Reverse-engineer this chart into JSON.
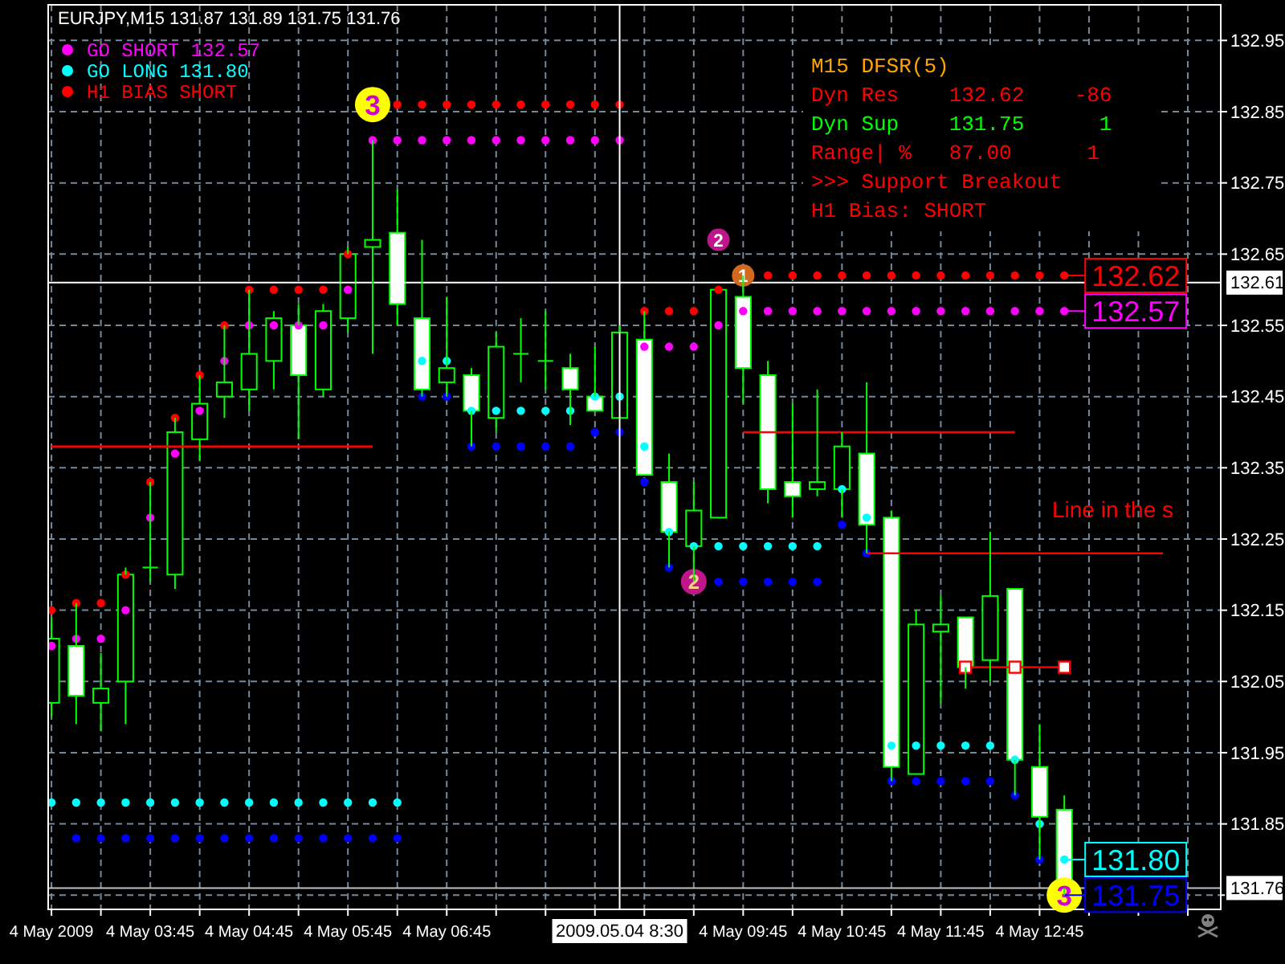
{
  "chart_data": {
    "type": "candlestick",
    "title": "EURJPY,M15  131.87 131.89 131.75 131.76",
    "color": "#00ff00",
    "x": [
      "2009-05-04T02:45",
      "2009-05-04T03:00",
      "2009-05-04T03:15",
      "2009-05-04T03:30",
      "2009-05-04T03:45",
      "2009-05-04T04:00",
      "2009-05-04T04:15",
      "2009-05-04T04:30",
      "2009-05-04T04:45",
      "2009-05-04T05:00",
      "2009-05-04T05:15",
      "2009-05-04T05:30",
      "2009-05-04T05:45",
      "2009-05-04T06:00",
      "2009-05-04T06:15",
      "2009-05-04T06:30",
      "2009-05-04T06:45",
      "2009-05-04T07:00",
      "2009-05-04T07:15",
      "2009-05-04T07:30",
      "2009-05-04T07:45",
      "2009-05-04T08:00",
      "2009-05-04T08:15",
      "2009-05-04T08:30",
      "2009-05-04T08:45",
      "2009-05-04T09:00",
      "2009-05-04T09:15",
      "2009-05-04T09:30",
      "2009-05-04T09:45",
      "2009-05-04T10:00",
      "2009-05-04T10:15",
      "2009-05-04T10:30",
      "2009-05-04T10:45",
      "2009-05-04T11:00",
      "2009-05-04T11:15",
      "2009-05-04T11:30",
      "2009-05-04T11:45",
      "2009-05-04T12:00",
      "2009-05-04T12:15",
      "2009-05-04T12:30",
      "2009-05-04T12:45",
      "2009-05-04T13:00"
    ],
    "ohlc": [
      [
        132.02,
        132.14,
        132.0,
        132.11
      ],
      [
        132.1,
        132.16,
        131.99,
        132.03
      ],
      [
        132.02,
        132.09,
        131.98,
        132.04
      ],
      [
        132.05,
        132.21,
        131.99,
        132.2
      ],
      [
        132.21,
        132.33,
        132.19,
        132.21
      ],
      [
        132.2,
        132.42,
        132.18,
        132.4
      ],
      [
        132.39,
        132.48,
        132.36,
        132.44
      ],
      [
        132.45,
        132.55,
        132.42,
        132.47
      ],
      [
        132.46,
        132.6,
        132.43,
        132.51
      ],
      [
        132.5,
        132.57,
        132.46,
        132.56
      ],
      [
        132.55,
        132.58,
        132.39,
        132.48
      ],
      [
        132.46,
        132.58,
        132.45,
        132.57
      ],
      [
        132.56,
        132.66,
        132.54,
        132.65
      ],
      [
        132.66,
        132.81,
        132.51,
        132.67
      ],
      [
        132.68,
        132.74,
        132.55,
        132.58
      ],
      [
        132.56,
        132.67,
        132.45,
        132.46
      ],
      [
        132.47,
        132.59,
        132.45,
        132.49
      ],
      [
        132.48,
        132.49,
        132.38,
        132.43
      ],
      [
        132.42,
        132.54,
        132.4,
        132.52
      ],
      [
        132.51,
        132.56,
        132.47,
        132.51
      ],
      [
        132.5,
        132.57,
        132.46,
        132.5
      ],
      [
        132.49,
        132.51,
        132.41,
        132.46
      ],
      [
        132.45,
        132.52,
        132.43,
        132.43
      ],
      [
        132.42,
        132.55,
        132.42,
        132.54
      ],
      [
        132.53,
        132.57,
        132.34,
        132.34
      ],
      [
        132.33,
        132.37,
        132.21,
        132.26
      ],
      [
        132.24,
        132.33,
        132.19,
        132.29
      ],
      [
        132.28,
        132.6,
        132.28,
        132.6
      ],
      [
        132.59,
        132.62,
        132.44,
        132.49
      ],
      [
        132.48,
        132.5,
        132.3,
        132.32
      ],
      [
        132.33,
        132.44,
        132.28,
        132.31
      ],
      [
        132.32,
        132.46,
        132.31,
        132.33
      ],
      [
        132.32,
        132.4,
        132.28,
        132.38
      ],
      [
        132.37,
        132.47,
        132.23,
        132.27
      ],
      [
        132.28,
        132.29,
        131.91,
        131.93
      ],
      [
        131.92,
        132.15,
        131.92,
        132.13
      ],
      [
        132.12,
        132.17,
        132.02,
        132.13
      ],
      [
        132.14,
        132.14,
        132.04,
        132.07
      ],
      [
        132.08,
        132.26,
        132.05,
        132.17
      ],
      [
        132.18,
        132.18,
        131.89,
        131.94
      ],
      [
        131.93,
        131.99,
        131.8,
        131.86
      ],
      [
        131.87,
        131.89,
        131.75,
        131.76
      ]
    ],
    "series": [
      {
        "name": "GO SHORT 132.57",
        "type": "scatter",
        "color": "#ff00ff",
        "marker": "circle",
        "values": [
          132.1,
          132.11,
          132.11,
          132.15,
          132.28,
          132.37,
          132.43,
          132.5,
          132.55,
          132.55,
          132.55,
          132.55,
          132.6,
          132.81,
          132.81,
          132.81,
          132.81,
          132.81,
          132.81,
          132.81,
          132.81,
          132.81,
          132.81,
          132.81,
          132.52,
          132.52,
          132.52,
          132.55,
          132.57,
          132.57,
          132.57,
          132.57,
          132.57,
          132.57,
          132.57,
          132.57,
          132.57,
          132.57,
          132.57,
          132.57,
          132.57,
          132.57
        ]
      },
      {
        "name": "GO LONG 131.80",
        "type": "scatter",
        "color": "#00ffff",
        "marker": "circle",
        "values": [
          131.88,
          131.88,
          131.88,
          131.88,
          131.88,
          131.88,
          131.88,
          131.88,
          131.88,
          131.88,
          131.88,
          131.88,
          131.88,
          131.88,
          131.88,
          132.5,
          132.5,
          132.43,
          132.43,
          132.43,
          132.43,
          132.43,
          132.45,
          132.45,
          132.38,
          132.26,
          132.24,
          132.24,
          132.24,
          132.24,
          132.24,
          132.24,
          132.32,
          132.28,
          131.96,
          131.96,
          131.96,
          131.96,
          131.96,
          131.94,
          131.85,
          131.8
        ]
      },
      {
        "name": "H1 BIAS SHORT",
        "type": "scatter",
        "color": "#ff0000",
        "marker": "circle",
        "values": [
          132.15,
          132.16,
          132.16,
          132.2,
          132.33,
          132.42,
          132.48,
          132.55,
          132.6,
          132.6,
          132.6,
          132.6,
          132.65,
          null,
          132.86,
          132.86,
          132.86,
          132.86,
          132.86,
          132.86,
          132.86,
          132.86,
          132.86,
          132.86,
          132.57,
          132.57,
          132.57,
          132.6,
          null,
          132.62,
          132.62,
          132.62,
          132.62,
          132.62,
          132.62,
          132.62,
          132.62,
          132.62,
          132.62,
          132.62,
          132.62,
          132.62
        ]
      },
      {
        "type": "scatter",
        "color": "#0000ff",
        "marker": "circle",
        "values": [
          null,
          131.83,
          131.83,
          131.83,
          131.83,
          131.83,
          131.83,
          131.83,
          131.83,
          131.83,
          131.83,
          131.83,
          131.83,
          131.83,
          131.83,
          132.45,
          132.45,
          132.38,
          132.38,
          132.38,
          132.38,
          132.38,
          132.4,
          132.4,
          132.33,
          132.21,
          null,
          132.19,
          132.19,
          132.19,
          132.19,
          132.19,
          132.27,
          132.23,
          131.91,
          131.91,
          131.91,
          131.91,
          131.91,
          131.89,
          131.8,
          null
        ]
      },
      {
        "type": "line",
        "color": "#ff0000",
        "x": [
          "2009-05-04T02:45",
          "2009-05-04T06:00"
        ],
        "values": [
          132.38,
          132.38
        ]
      },
      {
        "type": "line",
        "color": "#ff0000",
        "x": [
          "2009-05-04T09:45",
          "2009-05-04T12:30"
        ],
        "values": [
          132.4,
          132.4
        ]
      },
      {
        "type": "line",
        "color": "#ff0000",
        "x": [
          "2009-05-04T11:00",
          "2009-05-04T14:00"
        ],
        "values": [
          132.23,
          132.23
        ]
      },
      {
        "type": "line",
        "color": "#ff0000",
        "marker": "square",
        "x": [
          "2009-05-04T12:00",
          "2009-05-04T12:30",
          "2009-05-04T13:00"
        ],
        "values": [
          132.07,
          132.07,
          132.07
        ]
      }
    ],
    "xlim": [
      "2009-05-04T02:43",
      "2009-05-04T14:35"
    ],
    "xticks": [
      {
        "value": "2009-05-04T02:45",
        "label": "4 May 2009"
      },
      {
        "value": "2009-05-04T03:15",
        "label": null
      },
      {
        "value": "2009-05-04T03:45",
        "label": "4 May 03:45"
      },
      {
        "value": "2009-05-04T04:15",
        "label": null
      },
      {
        "value": "2009-05-04T04:45",
        "label": "4 May 04:45"
      },
      {
        "value": "2009-05-04T05:15",
        "label": null
      },
      {
        "value": "2009-05-04T05:45",
        "label": "4 May 05:45"
      },
      {
        "value": "2009-05-04T06:15",
        "label": null
      },
      {
        "value": "2009-05-04T06:45",
        "label": "4 May 06:45"
      },
      {
        "value": "2009-05-04T07:15",
        "label": null
      },
      {
        "value": "2009-05-04T07:45",
        "label": null
      },
      {
        "value": "2009-05-04T08:15",
        "label": null
      },
      {
        "value": "2009-05-04T08:45",
        "label": null
      },
      {
        "value": "2009-05-04T09:15",
        "label": null
      },
      {
        "value": "2009-05-04T09:45",
        "label": "4 May 09:45"
      },
      {
        "value": "2009-05-04T10:15",
        "label": null
      },
      {
        "value": "2009-05-04T10:45",
        "label": "4 May 10:45"
      },
      {
        "value": "2009-05-04T11:15",
        "label": null
      },
      {
        "value": "2009-05-04T11:45",
        "label": "4 May 11:45"
      },
      {
        "value": "2009-05-04T12:15",
        "label": null
      },
      {
        "value": "2009-05-04T12:45",
        "label": "4 May 12:45"
      },
      {
        "value": "2009-05-04T13:15",
        "label": null
      },
      {
        "value": "2009-05-04T13:45",
        "label": null
      },
      {
        "value": "2009-05-04T14:15",
        "label": null
      }
    ],
    "ylim": [
      131.73,
      133.0
    ],
    "yticks": [
      {
        "value": 131.75,
        "label": null
      },
      131.85,
      131.95,
      132.05,
      132.15,
      132.25,
      132.35,
      132.45,
      132.55,
      132.65,
      132.75,
      132.85,
      132.95
    ],
    "grid": true,
    "legend": "top left",
    "ref_lines": [
      {
        "axis": "y",
        "value": 132.61,
        "label": "132.61",
        "color": "#ffffff"
      },
      {
        "axis": "x",
        "value": "2009-05-04T08:30",
        "label": "2009.05.04 8:30",
        "color": "#ffffff"
      },
      {
        "axis": "y",
        "value": 131.76,
        "label": "131.76",
        "color": "#c0c0c0"
      }
    ],
    "annotations": [
      {
        "text": "3",
        "x": "2009-05-04T06:00",
        "y": 132.86
      },
      {
        "text": "2",
        "x": "2009-05-04T09:30",
        "y": 132.67
      },
      {
        "text": "1",
        "x": "2009-05-04T09:45",
        "y": 132.62
      },
      {
        "text": "2",
        "x": "2009-05-04T09:15",
        "y": 132.19
      },
      {
        "text": "3",
        "x": "2009-05-04T13:00",
        "y": 131.75
      },
      {
        "text": "132.62",
        "x": "2009-05-04T13:00",
        "y": 132.62
      },
      {
        "text": "132.57",
        "x": "2009-05-04T13:00",
        "y": 132.57
      },
      {
        "text": "131.80",
        "x": "2009-05-04T13:00",
        "y": 131.8
      },
      {
        "text": "131.75",
        "x": "2009-05-04T13:00",
        "y": 131.75
      },
      "M15 DFSR(5)",
      "Dyn Res    132.62    -86",
      "Dyn Sup    131.75      1",
      "Range| %   87.00      1",
      ">>> Support Breakout",
      "H1 Bias: SHORT",
      "Line in the s"
    ]
  }
}
